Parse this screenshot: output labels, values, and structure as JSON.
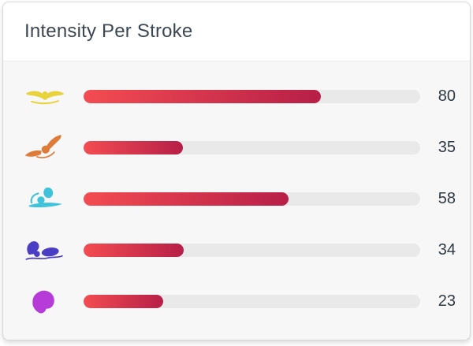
{
  "card": {
    "title": "Intensity Per Stroke"
  },
  "chart_data": {
    "type": "bar",
    "orientation": "horizontal",
    "title": "Intensity Per Stroke",
    "categories": [
      "butterfly",
      "backstroke",
      "breaststroke",
      "freestyle",
      "other"
    ],
    "values": [
      80,
      35,
      58,
      34,
      23
    ],
    "value_range": [
      0,
      100
    ],
    "grid": false,
    "legend": "none",
    "rows": [
      {
        "stroke": "butterfly",
        "icon": "butterfly-stroke-icon",
        "value": 80,
        "fill_percent": 70.5
      },
      {
        "stroke": "backstroke",
        "icon": "backstroke-icon",
        "value": 35,
        "fill_percent": 29.5
      },
      {
        "stroke": "breaststroke",
        "icon": "breaststroke-icon",
        "value": 58,
        "fill_percent": 61.0
      },
      {
        "stroke": "freestyle",
        "icon": "freestyle-stroke-icon",
        "value": 34,
        "fill_percent": 29.8
      },
      {
        "stroke": "other",
        "icon": "other-stroke-icon",
        "value": 23,
        "fill_percent": 23.7
      }
    ],
    "colors": {
      "bar_gradient_start": "#f34c52",
      "bar_gradient_end": "#b71f48",
      "bar_track": "#e9e9ea",
      "butterfly": "#e8d33c",
      "backstroke": "#de7b39",
      "breaststroke": "#3ec3da",
      "freestyle": "#4b3ec5",
      "other": "#b63bd9"
    }
  }
}
